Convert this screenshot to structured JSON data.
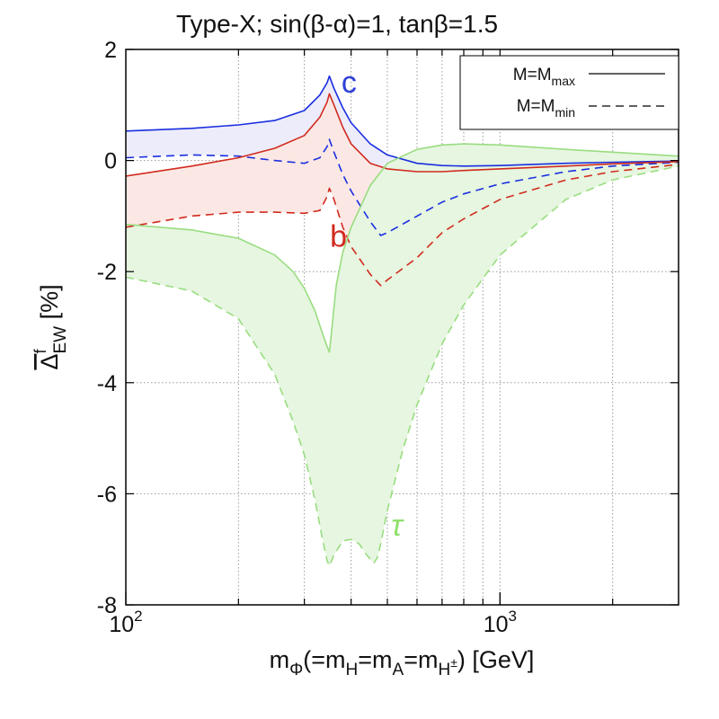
{
  "chart_data": {
    "type": "line",
    "title": "Type-X; sin(β-α)=1, tanβ=1.5",
    "x_scale": "log",
    "xlim": [
      100,
      3000
    ],
    "ylim": [
      -8,
      2
    ],
    "grid": true,
    "xlabel": {
      "parts": [
        {
          "t": "m",
          "s": "n"
        },
        {
          "t": "Φ",
          "s": "sub"
        },
        {
          "t": "(=m",
          "s": "n"
        },
        {
          "t": "H",
          "s": "sub"
        },
        {
          "t": "=m",
          "s": "n"
        },
        {
          "t": "A",
          "s": "sub"
        },
        {
          "t": "=m",
          "s": "n"
        },
        {
          "t": "H",
          "s": "sub"
        },
        {
          "t": "±",
          "s": "subsup"
        },
        {
          "t": ") [GeV]",
          "s": "n"
        }
      ]
    },
    "ylabel": {
      "main": "Δ",
      "sup": "f",
      "sub": "EW",
      "suffix": " [%]"
    },
    "x_ticks": [
      {
        "value": 100,
        "base": "10",
        "exp": "2"
      },
      {
        "value": 1000,
        "base": "10",
        "exp": "3"
      }
    ],
    "y_ticks": [
      {
        "value": 2,
        "label": "2"
      },
      {
        "value": 0,
        "label": "0"
      },
      {
        "value": -2,
        "label": "-2"
      },
      {
        "value": -4,
        "label": "-4"
      },
      {
        "value": -6,
        "label": "-6"
      },
      {
        "value": -8,
        "label": "-8"
      }
    ],
    "legend": {
      "position": "top-right",
      "entries": [
        {
          "label": "M=M",
          "sub": "max",
          "style": "solid"
        },
        {
          "label": "M=M",
          "sub": "min",
          "style": "dashed"
        }
      ]
    },
    "annotations": [
      {
        "text": "c",
        "x": 395,
        "y": 1.22,
        "color": "#2f3fd9",
        "italic": false
      },
      {
        "text": "b",
        "x": 370,
        "y": -1.55,
        "color": "#d22a1e",
        "italic": false
      },
      {
        "text": "τ",
        "x": 530,
        "y": -6.75,
        "color": "#8ee06a",
        "italic": true
      }
    ],
    "series": [
      {
        "name": "c M=Mmax",
        "fermion": "c",
        "style": "solid",
        "color": "#1a2ee0",
        "x": [
          100,
          150,
          200,
          250,
          300,
          330,
          345,
          350,
          360,
          380,
          400,
          450,
          500,
          600,
          700,
          800,
          1000,
          1500,
          2000,
          3000
        ],
        "y": [
          0.53,
          0.58,
          0.64,
          0.72,
          0.9,
          1.18,
          1.4,
          1.52,
          1.3,
          0.95,
          0.68,
          0.3,
          0.1,
          -0.05,
          -0.09,
          -0.1,
          -0.09,
          -0.05,
          -0.03,
          -0.01
        ]
      },
      {
        "name": "c M=Mmin",
        "fermion": "c",
        "style": "dashed",
        "color": "#1a2ee0",
        "x": [
          100,
          150,
          200,
          250,
          300,
          330,
          345,
          350,
          360,
          380,
          400,
          450,
          480,
          500,
          600,
          700,
          800,
          1000,
          1500,
          2000,
          3000
        ],
        "y": [
          0.05,
          0.1,
          0.08,
          0.0,
          -0.05,
          0.05,
          0.25,
          0.38,
          0.15,
          -0.25,
          -0.55,
          -1.1,
          -1.35,
          -1.3,
          -1.0,
          -0.75,
          -0.6,
          -0.42,
          -0.2,
          -0.1,
          -0.03
        ]
      },
      {
        "name": "b M=Mmax",
        "fermion": "b",
        "style": "solid",
        "color": "#d22a1e",
        "x": [
          100,
          150,
          200,
          250,
          300,
          330,
          345,
          350,
          360,
          380,
          400,
          450,
          500,
          600,
          700,
          800,
          1000,
          1500,
          2000,
          3000
        ],
        "y": [
          -0.28,
          -0.1,
          0.05,
          0.22,
          0.45,
          0.78,
          1.05,
          1.2,
          1.0,
          0.6,
          0.3,
          -0.05,
          -0.15,
          -0.2,
          -0.2,
          -0.18,
          -0.15,
          -0.1,
          -0.06,
          -0.02
        ]
      },
      {
        "name": "b M=Mmin",
        "fermion": "b",
        "style": "dashed",
        "color": "#d22a1e",
        "x": [
          100,
          150,
          200,
          250,
          300,
          330,
          345,
          350,
          360,
          380,
          400,
          450,
          480,
          500,
          600,
          700,
          800,
          1000,
          1500,
          2000,
          3000
        ],
        "y": [
          -1.2,
          -1.0,
          -0.93,
          -0.93,
          -0.95,
          -0.9,
          -0.65,
          -0.5,
          -0.7,
          -1.2,
          -1.55,
          -2.05,
          -2.25,
          -2.15,
          -1.75,
          -1.3,
          -1.05,
          -0.7,
          -0.35,
          -0.2,
          -0.07
        ]
      },
      {
        "name": "τ M=Mmax",
        "fermion": "τ",
        "style": "solid",
        "color": "#99dd80",
        "x": [
          100,
          150,
          200,
          250,
          280,
          300,
          320,
          335,
          345,
          350,
          355,
          365,
          380,
          400,
          450,
          500,
          600,
          700,
          800,
          1000,
          1500,
          2000,
          3000
        ],
        "y": [
          -1.15,
          -1.25,
          -1.4,
          -1.7,
          -2.0,
          -2.3,
          -2.7,
          -3.1,
          -3.35,
          -3.45,
          -3.05,
          -2.25,
          -1.65,
          -1.2,
          -0.45,
          -0.05,
          0.2,
          0.28,
          0.3,
          0.28,
          0.2,
          0.15,
          0.08
        ]
      },
      {
        "name": "τ M=Mmin",
        "fermion": "τ",
        "style": "dashed",
        "color": "#99dd80",
        "x": [
          100,
          150,
          200,
          250,
          280,
          300,
          320,
          335,
          345,
          350,
          360,
          380,
          400,
          420,
          440,
          460,
          470,
          480,
          500,
          550,
          600,
          700,
          800,
          1000,
          1500,
          2000,
          3000
        ],
        "y": [
          -2.1,
          -2.35,
          -2.85,
          -3.85,
          -4.7,
          -5.3,
          -6.1,
          -6.8,
          -7.2,
          -7.3,
          -7.1,
          -6.85,
          -6.82,
          -6.9,
          -7.1,
          -7.25,
          -7.15,
          -6.9,
          -6.3,
          -5.2,
          -4.4,
          -3.3,
          -2.6,
          -1.7,
          -0.7,
          -0.35,
          -0.1
        ]
      }
    ],
    "bands": [
      {
        "between": [
          "c M=Mmax",
          "c M=Mmin"
        ],
        "color": "#ececfb"
      },
      {
        "between": [
          "b M=Mmax",
          "b M=Mmin"
        ],
        "color": "#fbe8e4"
      },
      {
        "between": [
          "τ M=Mmax",
          "τ M=Mmin"
        ],
        "color": "#e6f6e0"
      }
    ]
  }
}
